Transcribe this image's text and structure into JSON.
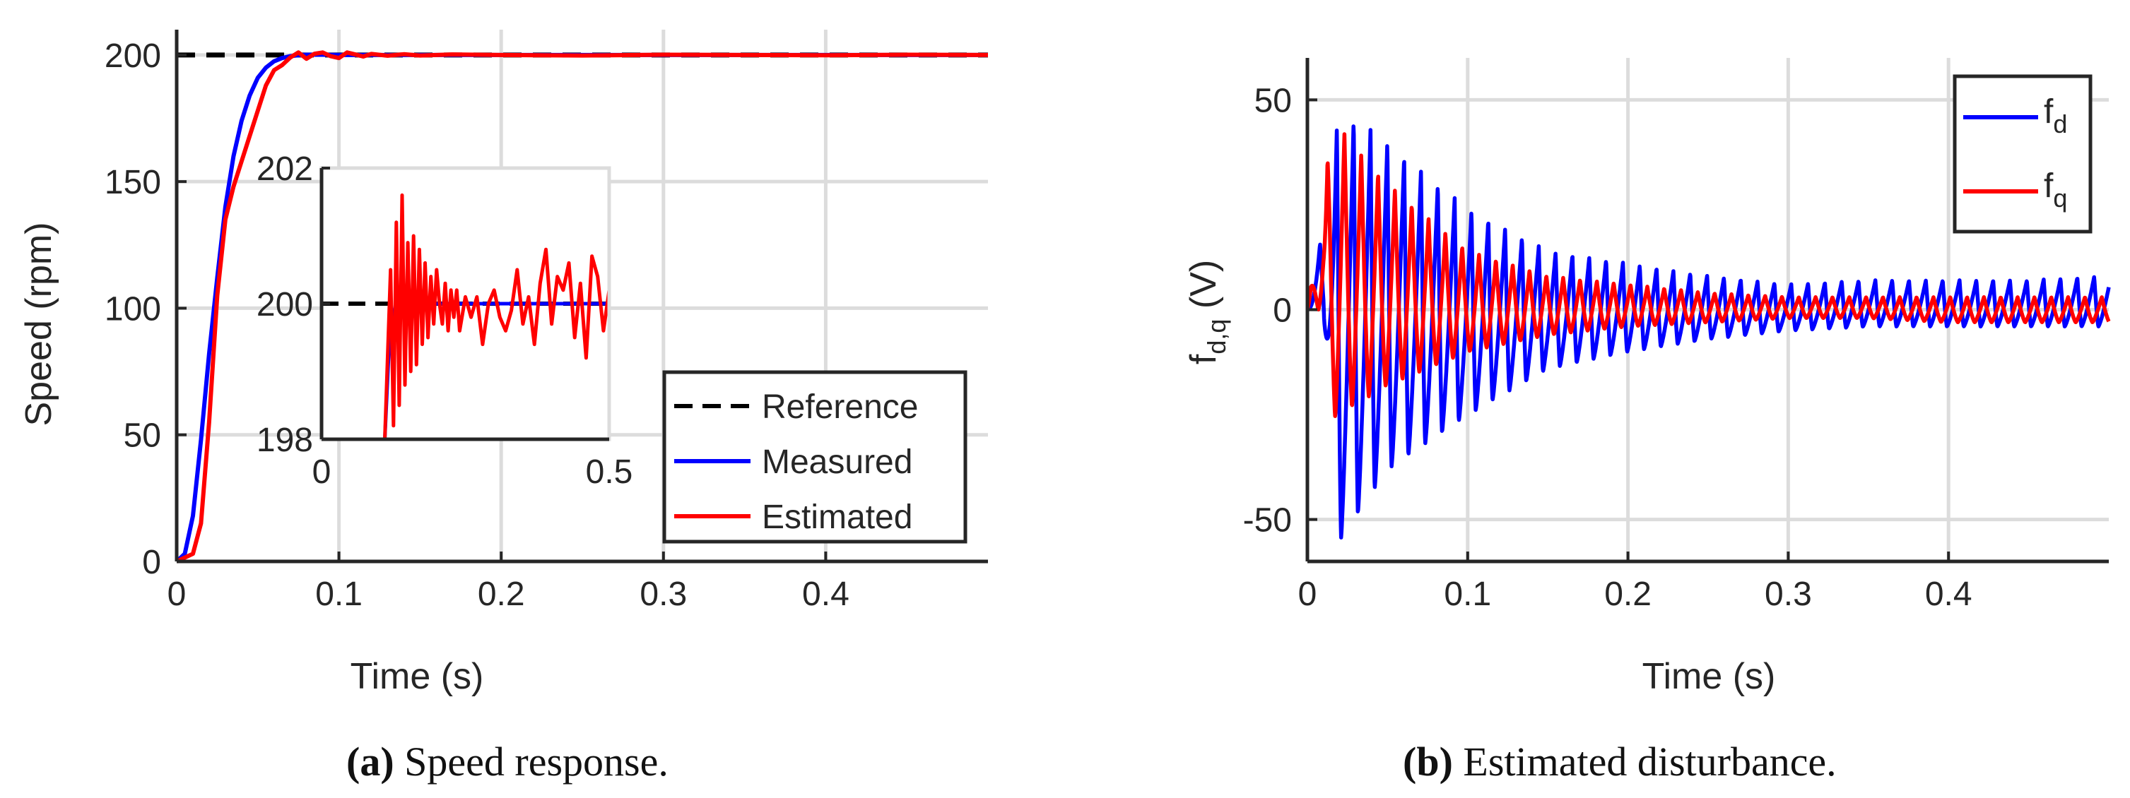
{
  "chart_data": [
    {
      "type": "line",
      "panel_label": "(a)",
      "caption": "Speed response.",
      "xlabel": "Time (s)",
      "ylabel": "Speed (rpm)",
      "xlim": [
        0,
        0.5
      ],
      "ylim": [
        0,
        210
      ],
      "xticks": [
        0,
        0.1,
        0.2,
        0.3,
        0.4
      ],
      "xtick_labels": [
        "0",
        "0.1",
        "0.2",
        "0.3",
        "0.4"
      ],
      "yticks": [
        0,
        50,
        100,
        150,
        200
      ],
      "ytick_labels": [
        "0",
        "50",
        "100",
        "150",
        "200"
      ],
      "grid": true,
      "legend_location": "bottom-right",
      "series": [
        {
          "name": "Reference",
          "color": "#000000",
          "style": "dashed",
          "x": [
            0,
            0.5
          ],
          "y": [
            200,
            200
          ]
        },
        {
          "name": "Measured",
          "color": "#0000ff",
          "style": "solid",
          "x": [
            0,
            0.005,
            0.01,
            0.015,
            0.02,
            0.025,
            0.03,
            0.035,
            0.04,
            0.045,
            0.05,
            0.055,
            0.06,
            0.065,
            0.07,
            0.075,
            0.08,
            0.09,
            0.1,
            0.12,
            0.15,
            0.2,
            0.3,
            0.4,
            0.5
          ],
          "y": [
            0,
            3,
            18,
            48,
            82,
            112,
            140,
            160,
            174,
            184,
            191,
            195,
            197.5,
            198.8,
            199.5,
            199.9,
            200.1,
            200.1,
            200,
            200,
            200,
            200,
            200,
            200,
            200
          ]
        },
        {
          "name": "Estimated",
          "color": "#ff0000",
          "style": "solid",
          "x": [
            0,
            0.01,
            0.015,
            0.02,
            0.025,
            0.03,
            0.035,
            0.04,
            0.045,
            0.05,
            0.055,
            0.06,
            0.065,
            0.07,
            0.075,
            0.08,
            0.085,
            0.09,
            0.095,
            0.1,
            0.105,
            0.11,
            0.115,
            0.12,
            0.13,
            0.14,
            0.15,
            0.17,
            0.2,
            0.25,
            0.3,
            0.35,
            0.4,
            0.45,
            0.5
          ],
          "y": [
            0,
            3,
            15,
            55,
            105,
            135,
            148,
            158,
            168,
            178,
            188,
            194,
            196,
            199,
            201,
            198.5,
            200.5,
            201,
            199.5,
            198.8,
            201,
            200.2,
            199.4,
            200.4,
            199.7,
            200.3,
            199.8,
            200.2,
            200,
            199.8,
            200.1,
            200,
            199.9,
            200.1,
            200
          ]
        }
      ],
      "inset": {
        "xlim": [
          0,
          0.5
        ],
        "ylim": [
          198,
          202
        ],
        "xticks": [
          0,
          0.5
        ],
        "xtick_labels": [
          "0",
          "0.5"
        ],
        "yticks": [
          198,
          200,
          202
        ],
        "ytick_labels": [
          "198",
          "200",
          "202"
        ],
        "reference": 200,
        "measured_x": [
          0.11,
          0.118,
          0.13,
          0.15,
          0.2,
          0.3,
          0.4,
          0.5
        ],
        "measured_y": [
          198,
          199.5,
          200.05,
          200.02,
          200,
          200,
          200,
          200
        ],
        "estimated_x": [
          0.1,
          0.11,
          0.12,
          0.125,
          0.13,
          0.135,
          0.14,
          0.145,
          0.15,
          0.155,
          0.16,
          0.165,
          0.17,
          0.175,
          0.18,
          0.185,
          0.19,
          0.195,
          0.2,
          0.205,
          0.21,
          0.215,
          0.22,
          0.225,
          0.23,
          0.235,
          0.24,
          0.25,
          0.26,
          0.27,
          0.28,
          0.29,
          0.3,
          0.31,
          0.32,
          0.33,
          0.34,
          0.35,
          0.36,
          0.37,
          0.38,
          0.39,
          0.4,
          0.41,
          0.42,
          0.43,
          0.44,
          0.45,
          0.46,
          0.47,
          0.48,
          0.49,
          0.5
        ],
        "estimated_y": [
          198,
          198,
          200.5,
          198.2,
          201.2,
          198.5,
          201.6,
          198.8,
          200.9,
          199,
          201,
          199.1,
          200.8,
          199.4,
          200.6,
          199.5,
          200.4,
          199.7,
          200.5,
          200,
          199.7,
          200.3,
          199.6,
          200.2,
          199.8,
          200.2,
          199.6,
          200.1,
          199.8,
          200.1,
          199.4,
          200,
          200.2,
          199.8,
          199.6,
          199.9,
          200.5,
          199.7,
          200.1,
          199.4,
          200.3,
          200.8,
          199.7,
          200.4,
          200.2,
          200.6,
          199.5,
          200.3,
          199.2,
          200.7,
          200.4,
          199.6,
          200.2
        ]
      }
    },
    {
      "type": "line",
      "panel_label": "(b)",
      "caption": "Estimated disturbance.",
      "xlabel": "Time (s)",
      "ylabel": "f_{d,q} (V)",
      "xlim": [
        0,
        0.5
      ],
      "ylim": [
        -60,
        60
      ],
      "xticks": [
        0,
        0.1,
        0.2,
        0.3,
        0.4
      ],
      "xtick_labels": [
        "0",
        "0.1",
        "0.2",
        "0.3",
        "0.4"
      ],
      "yticks": [
        -50,
        0,
        50
      ],
      "ytick_labels": [
        "-50",
        "0",
        "50"
      ],
      "grid": true,
      "legend_location": "top-right",
      "oscillation_period": 0.0105,
      "series": [
        {
          "name": "f_d",
          "color": "#0000ff",
          "style": "solid",
          "envelope_t": [
            0,
            0.01,
            0.02,
            0.05,
            0.1,
            0.15,
            0.2,
            0.25,
            0.3,
            0.35,
            0.4,
            0.45,
            0.5
          ],
          "envelope_max": [
            0,
            20,
            48,
            40,
            24,
            14,
            11,
            8,
            6,
            7,
            7,
            7,
            8
          ],
          "envelope_min": [
            0,
            0,
            -55,
            -38,
            -25,
            -14,
            -10,
            -7,
            -5,
            -4,
            -4,
            -4,
            -4
          ]
        },
        {
          "name": "f_q",
          "color": "#ff0000",
          "style": "solid",
          "envelope_t": [
            0,
            0.01,
            0.015,
            0.05,
            0.1,
            0.15,
            0.2,
            0.25,
            0.3,
            0.35,
            0.4,
            0.45,
            0.5
          ],
          "envelope_max": [
            0,
            25,
            46,
            30,
            14,
            8,
            6,
            4,
            3,
            3,
            3,
            3,
            3
          ],
          "envelope_min": [
            0,
            0,
            -26,
            -18,
            -10,
            -6,
            -4,
            -3,
            -2,
            -2,
            -3,
            -3,
            -3
          ]
        }
      ]
    }
  ]
}
